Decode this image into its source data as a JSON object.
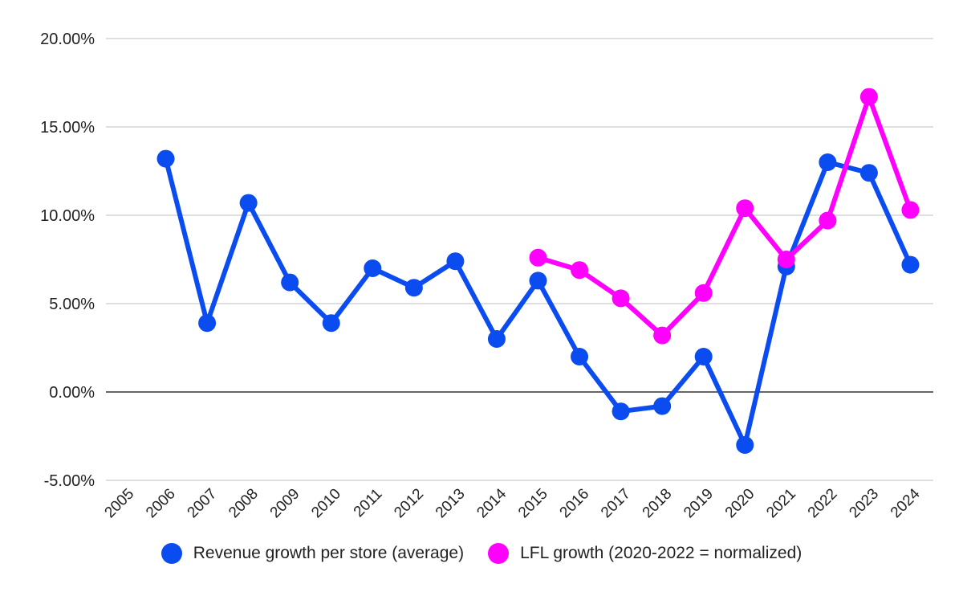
{
  "chart_data": {
    "type": "line",
    "title": "",
    "xlabel": "",
    "ylabel": "",
    "categories": [
      "2005",
      "2006",
      "2007",
      "2008",
      "2009",
      "2010",
      "2011",
      "2012",
      "2013",
      "2014",
      "2015",
      "2016",
      "2017",
      "2018",
      "2019",
      "2020",
      "2021",
      "2022",
      "2023",
      "2024"
    ],
    "ylim": [
      -5,
      20
    ],
    "yticks": [
      -5,
      0,
      5,
      10,
      15,
      20
    ],
    "ytick_labels": [
      "-5.00%",
      "0.00%",
      "5.00%",
      "10.00%",
      "15.00%",
      "20.00%"
    ],
    "grid": true,
    "legend_position": "bottom",
    "series": [
      {
        "name": "Revenue growth per store (average)",
        "color": "#0b4cf0",
        "values": [
          null,
          13.2,
          3.9,
          10.7,
          6.2,
          3.9,
          7.0,
          5.9,
          7.4,
          3.0,
          6.3,
          2.0,
          -1.1,
          -0.8,
          2.0,
          -3.0,
          7.1,
          13.0,
          12.4,
          7.2
        ]
      },
      {
        "name": "LFL growth (2020-2022 = normalized)",
        "color": "#ff00ff",
        "values": [
          null,
          null,
          null,
          null,
          null,
          null,
          null,
          null,
          null,
          null,
          7.6,
          6.9,
          5.3,
          3.2,
          5.6,
          10.4,
          7.5,
          9.7,
          16.7,
          10.3
        ]
      }
    ]
  }
}
